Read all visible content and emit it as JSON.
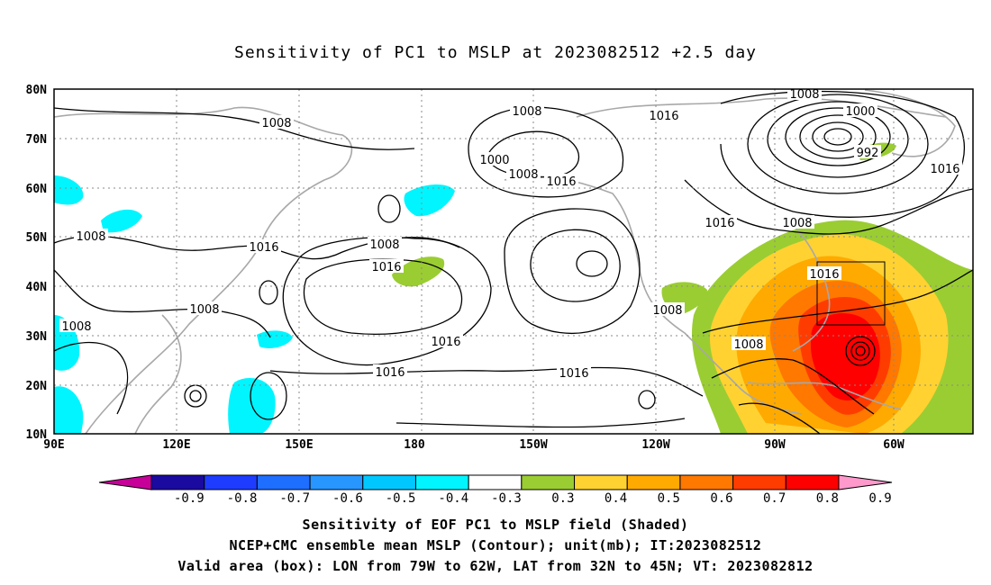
{
  "title": "Sensitivity of PC1 to MSLP at 2023082512 +2.5 day",
  "map": {
    "lat_labels": [
      "80N",
      "70N",
      "60N",
      "50N",
      "40N",
      "30N",
      "20N",
      "10N"
    ],
    "lon_labels": [
      "90E",
      "120E",
      "150E",
      "180",
      "150W",
      "120W",
      "90W",
      "60W"
    ],
    "contour_labels": [
      "1008",
      "1008",
      "1016",
      "1008",
      "1000",
      "1008",
      "1016",
      "1008",
      "1000",
      "992",
      "1016",
      "1016",
      "1016",
      "1008",
      "1016",
      "1016",
      "1008",
      "1008",
      "1008",
      "1016",
      "1016",
      "1016",
      "1008",
      "1008"
    ],
    "valid_box": {
      "lon_from": "79W",
      "lon_to": "62W",
      "lat_from": "32N",
      "lat_to": "45N"
    }
  },
  "colorbar": {
    "labels": [
      "-0.9",
      "-0.8",
      "-0.7",
      "-0.6",
      "-0.5",
      "-0.4",
      "-0.3",
      "0.3",
      "0.4",
      "0.5",
      "0.6",
      "0.7",
      "0.8",
      "0.9"
    ],
    "colors": [
      "#1a0aa0",
      "#1e3cff",
      "#1e6eff",
      "#2896ff",
      "#00c8ff",
      "#00f5ff",
      "#ffffff",
      "#9acd32",
      "#ffd232",
      "#ffaa00",
      "#ff7800",
      "#ff3c00",
      "#ff0000"
    ],
    "end_low": "#c8009a",
    "end_high": "#ff99cc"
  },
  "captions": {
    "line1": "Sensitivity of EOF PC1 to MSLP field (Shaded)",
    "line2": "NCEP+CMC ensemble mean MSLP (Contour); unit(mb); IT:2023082512",
    "line3": "Valid area (box): LON from 79W to 62W, LAT from 32N to 45N; VT: 2023082812"
  }
}
